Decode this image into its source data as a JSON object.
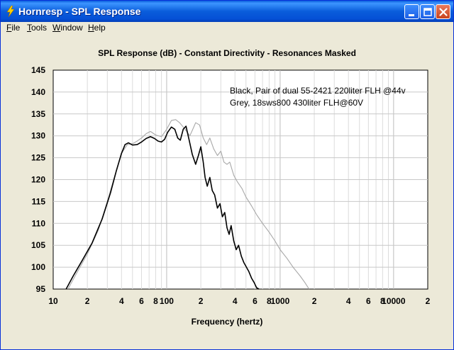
{
  "window": {
    "title": "Hornresp - SPL Response"
  },
  "menu": {
    "file": {
      "label": "File",
      "mnemonic": "F",
      "rest": "ile"
    },
    "tools": {
      "label": "Tools",
      "mnemonic": "T",
      "rest": "ools"
    },
    "window": {
      "label": "Window",
      "mnemonic": "W",
      "rest": "indow"
    },
    "help": {
      "label": "Help",
      "mnemonic": "H",
      "rest": "elp"
    }
  },
  "icons": {
    "app": "hornresp-app-icon",
    "minimize": "minimize-icon",
    "maximize": "maximize-icon",
    "close": "close-icon"
  },
  "colors": {
    "titlebar": "#0a5ddb",
    "plot_background": "#ffffff",
    "series_black": "#000000",
    "series_grey": "#a8a8a8",
    "grid": "#c8c8c8"
  },
  "chart_data": {
    "type": "line",
    "title": "SPL Response (dB) - Constant Directivity - Resonances Masked",
    "xlabel": "Frequency (hertz)",
    "ylabel": "",
    "x_scale": "log",
    "xlim": [
      10,
      20000
    ],
    "ylim": [
      95,
      145
    ],
    "grid": true,
    "legend_placement": "top-right",
    "legend": [
      "Black, Pair of dual 55-2421 220liter FLH @44v",
      "Grey, 18sws800 430liter FLH@60V"
    ],
    "y_ticks": [
      "95",
      "100",
      "105",
      "110",
      "115",
      "120",
      "125",
      "130",
      "135",
      "140",
      "145"
    ],
    "x_ticks": [
      {
        "value": 10,
        "label": "10"
      },
      {
        "value": 20,
        "label": "2"
      },
      {
        "value": 40,
        "label": "4"
      },
      {
        "value": 60,
        "label": "6"
      },
      {
        "value": 80,
        "label": "8"
      },
      {
        "value": 100,
        "label": "100"
      },
      {
        "value": 200,
        "label": "2"
      },
      {
        "value": 400,
        "label": "4"
      },
      {
        "value": 600,
        "label": "6"
      },
      {
        "value": 800,
        "label": "8"
      },
      {
        "value": 1000,
        "label": "1000"
      },
      {
        "value": 2000,
        "label": "2"
      },
      {
        "value": 4000,
        "label": "4"
      },
      {
        "value": 6000,
        "label": "6"
      },
      {
        "value": 8000,
        "label": "8"
      },
      {
        "value": 10000,
        "label": "10000"
      },
      {
        "value": 20000,
        "label": "2"
      }
    ],
    "series": [
      {
        "color": "#000000",
        "x": [
          13,
          15,
          18,
          22,
          27,
          32,
          36,
          40,
          43,
          46,
          50,
          55,
          60,
          66,
          72,
          78,
          84,
          90,
          96,
          102,
          110,
          118,
          125,
          132,
          140,
          148,
          158,
          168,
          180,
          190,
          200,
          210,
          218,
          228,
          240,
          252,
          265,
          280,
          295,
          310,
          325,
          340,
          355,
          370,
          390,
          410,
          430,
          455,
          480,
          505,
          530,
          560,
          590,
          620,
          650
        ],
        "y": [
          95,
          98,
          101.5,
          105.5,
          111,
          117,
          122,
          126,
          128,
          128.4,
          127.9,
          128,
          128.6,
          129.4,
          129.8,
          129.4,
          128.8,
          128.6,
          129.2,
          130.8,
          132,
          131.5,
          129.5,
          129,
          131.5,
          132.2,
          129,
          125.8,
          123.5,
          125.4,
          127.5,
          124,
          120.5,
          118.5,
          120.5,
          117.5,
          116.5,
          113.5,
          114.5,
          111.5,
          112.5,
          109,
          107.5,
          109.5,
          106,
          104,
          105,
          102.5,
          101,
          100,
          99,
          97.5,
          96.5,
          95.3,
          95
        ]
      },
      {
        "color": "#a8a8a8",
        "x": [
          13.5,
          16,
          20,
          25,
          30,
          35,
          40,
          45,
          50,
          55,
          60,
          66,
          72,
          80,
          90,
          100,
          110,
          120,
          130,
          140,
          150,
          160,
          170,
          180,
          195,
          210,
          225,
          240,
          260,
          280,
          300,
          320,
          340,
          360,
          390,
          420,
          460,
          500,
          560,
          620,
          700,
          800,
          900,
          1000,
          1150,
          1300,
          1500,
          1650,
          1800
        ],
        "y": [
          95,
          98.5,
          103,
          108.5,
          115,
          121,
          126,
          128,
          128.2,
          128.8,
          129.5,
          130.5,
          131,
          130.2,
          129.8,
          131.5,
          133.5,
          133.7,
          133,
          132,
          131,
          130,
          131.5,
          133,
          132.5,
          129.5,
          128,
          129.5,
          127,
          125.5,
          126.5,
          124,
          123.5,
          124,
          121,
          119.5,
          118,
          116,
          114,
          112,
          110,
          108,
          106,
          104,
          102,
          100,
          98,
          96.5,
          95
        ]
      }
    ]
  }
}
